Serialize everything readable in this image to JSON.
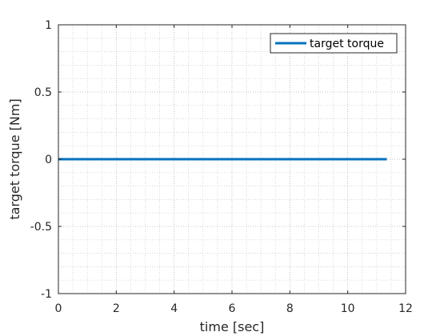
{
  "chart_data": {
    "type": "line",
    "title": "",
    "xlabel": "time [sec]",
    "ylabel": "target torque [Nm]",
    "xlim": [
      0,
      12
    ],
    "ylim": [
      -1,
      1
    ],
    "xticks": [
      0,
      2,
      4,
      6,
      8,
      10,
      12
    ],
    "xtick_labels": [
      "0",
      "2",
      "4",
      "6",
      "8",
      "10",
      "12"
    ],
    "yticks": [
      -1,
      -0.5,
      0,
      0.5,
      1
    ],
    "ytick_labels": [
      "-1",
      "-0.5",
      "0",
      "0.5",
      "1"
    ],
    "grid": true,
    "minor_grid": true,
    "legend_position": "top-right",
    "series": [
      {
        "name": "target torque",
        "color": "#0072bd",
        "x": [
          0,
          11.35
        ],
        "y": [
          0,
          0
        ]
      }
    ]
  }
}
